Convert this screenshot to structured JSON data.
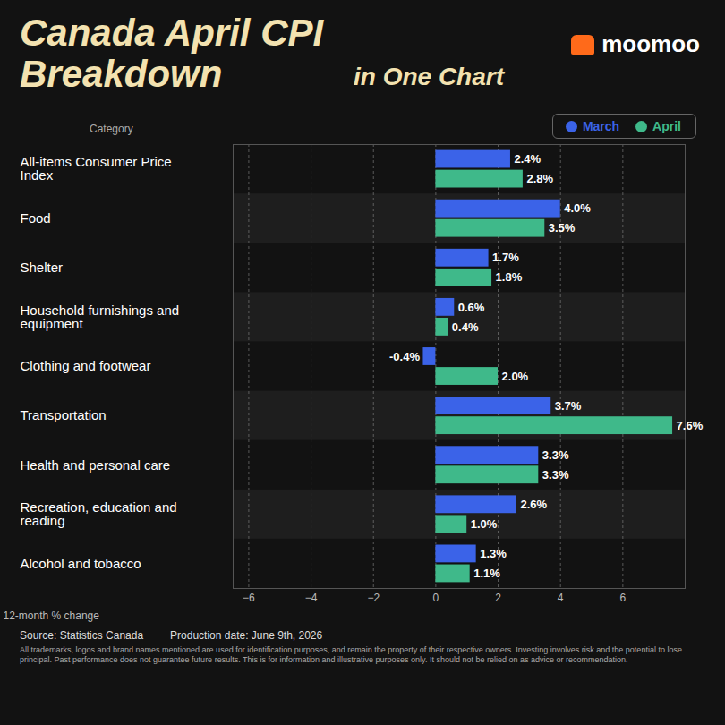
{
  "chart_data": {
    "type": "bar",
    "orientation": "horizontal",
    "title": "Canada April CPI Breakdown",
    "subtitle": "in One Chart",
    "logo": "moomoo",
    "y_label": "Category",
    "x_label": "12-month % change",
    "categories": [
      "All-items Consumer Price Index",
      "Food",
      "Shelter",
      "Household furnishings and equipment",
      "Clothing and footwear",
      "Transportation",
      "Health and personal care",
      "Recreation, education and reading",
      "Alcohol and tobacco"
    ],
    "series": [
      {
        "name": "March",
        "color": "#3b63e8",
        "values": [
          2.4,
          4.0,
          1.7,
          0.6,
          -0.4,
          3.7,
          3.3,
          2.6,
          1.3
        ],
        "value_labels": [
          "2.4%",
          "4.0%",
          "1.7%",
          "0.6%",
          "-0.4%",
          "3.7%",
          "3.3%",
          "2.6%",
          "1.3%"
        ]
      },
      {
        "name": "April",
        "color": "#3fb98a",
        "values": [
          2.8,
          3.5,
          1.8,
          0.4,
          2.0,
          7.6,
          3.3,
          1.0,
          1.1
        ],
        "value_labels": [
          "2.8%",
          "3.5%",
          "1.8%",
          "0.4%",
          "2.0%",
          "7.6%",
          "3.3%",
          "1.0%",
          "1.1%"
        ]
      }
    ],
    "xlim": [
      -6.5,
      8
    ],
    "xticks": [
      -6,
      -4,
      -2,
      0,
      2,
      4,
      6
    ],
    "grid": true,
    "legend": "top-right",
    "data_labels": true,
    "source": "Source: Statistics Canada",
    "production_date": "Production date: June 9th, 2026",
    "note": "All trademarks, logos and brand names mentioned are used for identification purposes, and remain the property of their respective owners. Investing involves risk and the potential to lose principal. Past performance does not guarantee future results. This is for information and illustrative purposes only. It should not be relied on as advice or recommendation."
  }
}
